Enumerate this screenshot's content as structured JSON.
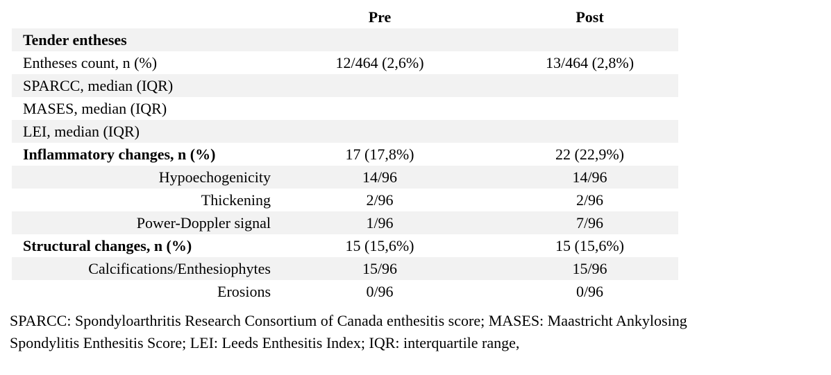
{
  "table": {
    "columns": [
      "",
      "Pre",
      "Post"
    ],
    "rows": [
      {
        "label": "Tender entheses",
        "style": "section",
        "shaded": true,
        "pre": "",
        "post": ""
      },
      {
        "label": "Entheses count, n (%)",
        "style": "item",
        "shaded": false,
        "pre": "12/464 (2,6%)",
        "post": "13/464 (2,8%)"
      },
      {
        "label": "SPARCC, median (IQR)",
        "style": "item",
        "shaded": true,
        "pre": "",
        "post": ""
      },
      {
        "label": "MASES, median (IQR)",
        "style": "item",
        "shaded": false,
        "pre": "",
        "post": ""
      },
      {
        "label": "LEI, median (IQR)",
        "style": "item",
        "shaded": true,
        "pre": "",
        "post": ""
      },
      {
        "label": "Inflammatory changes, n (%)",
        "style": "section",
        "shaded": false,
        "pre": "17 (17,8%)",
        "post": "22 (22,9%)"
      },
      {
        "label": "Hypoechogenicity",
        "style": "sub",
        "shaded": true,
        "pre": "14/96",
        "post": "14/96"
      },
      {
        "label": "Thickening",
        "style": "sub",
        "shaded": false,
        "pre": "2/96",
        "post": "2/96"
      },
      {
        "label": "Power-Doppler signal",
        "style": "sub",
        "shaded": true,
        "pre": "1/96",
        "post": "7/96"
      },
      {
        "label": "Structural changes, n (%)",
        "style": "section",
        "shaded": false,
        "pre": "15 (15,6%)",
        "post": "15 (15,6%)"
      },
      {
        "label": "Calcifications/Enthesiophytes",
        "style": "sub",
        "shaded": true,
        "pre": "15/96",
        "post": "15/96"
      },
      {
        "label": "Erosions",
        "style": "sub",
        "shaded": false,
        "pre": "0/96",
        "post": "0/96"
      }
    ]
  },
  "footnote": {
    "lines": [
      "SPARCC: Spondyloarthritis Research Consortium of Canada enthesitis score; MASES: Maastricht Ankylosing",
      "Spondylitis Enthesitis Score; LEI: Leeds Enthesitis Index; IQR: interquartile range,"
    ]
  },
  "colors": {
    "stripe": "#f2f2f2",
    "text": "#000000",
    "background": "#ffffff"
  }
}
